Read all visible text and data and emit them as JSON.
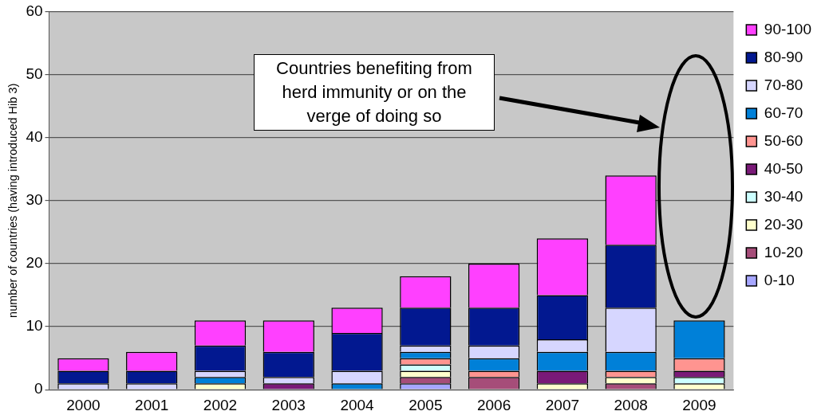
{
  "chart_data": {
    "type": "bar",
    "stacked": true,
    "ylabel": "number of countries (having introduced Hib 3)",
    "categories": [
      "2000",
      "2001",
      "2002",
      "2003",
      "2004",
      "2005",
      "2006",
      "2007",
      "2008",
      "2009"
    ],
    "series": [
      {
        "name": "0-10",
        "color": "#a6a6ff",
        "values": [
          0,
          0,
          0,
          0,
          0,
          1,
          0,
          0,
          0,
          0
        ]
      },
      {
        "name": "10-20",
        "color": "#a64d79",
        "values": [
          0,
          0,
          0,
          0,
          0,
          1,
          2,
          0,
          1,
          0
        ]
      },
      {
        "name": "20-30",
        "color": "#ffffcc",
        "values": [
          0,
          0,
          1,
          0,
          0,
          1,
          0,
          1,
          1,
          1
        ]
      },
      {
        "name": "30-40",
        "color": "#ccffff",
        "values": [
          0,
          0,
          0,
          0,
          0,
          1,
          0,
          0,
          0,
          1
        ]
      },
      {
        "name": "40-50",
        "color": "#7a1a78",
        "values": [
          0,
          0,
          0,
          1,
          0,
          0,
          0,
          2,
          0,
          1
        ]
      },
      {
        "name": "50-60",
        "color": "#ff9490",
        "values": [
          0,
          0,
          0,
          0,
          0,
          1,
          1,
          0,
          1,
          2
        ]
      },
      {
        "name": "60-70",
        "color": "#0080d8",
        "values": [
          0,
          0,
          1,
          0,
          1,
          1,
          2,
          3,
          3,
          6
        ]
      },
      {
        "name": "70-80",
        "color": "#d6d6ff",
        "values": [
          1,
          1,
          1,
          1,
          2,
          1,
          2,
          2,
          7,
          null
        ]
      },
      {
        "name": "80-90",
        "color": "#021890",
        "values": [
          2,
          2,
          4,
          4,
          6,
          6,
          6,
          7,
          10,
          null
        ]
      },
      {
        "name": "90-100",
        "color": "#ff40ff",
        "values": [
          2,
          3,
          4,
          5,
          4,
          5,
          7,
          9,
          11,
          null
        ]
      }
    ],
    "ylim": [
      0,
      60
    ],
    "yticks": [
      0,
      10,
      20,
      30,
      40,
      50,
      60
    ],
    "grid": "y",
    "legend": "right",
    "annotations": [
      "Countries benefiting from herd immunity or on the verge of doing so"
    ]
  }
}
